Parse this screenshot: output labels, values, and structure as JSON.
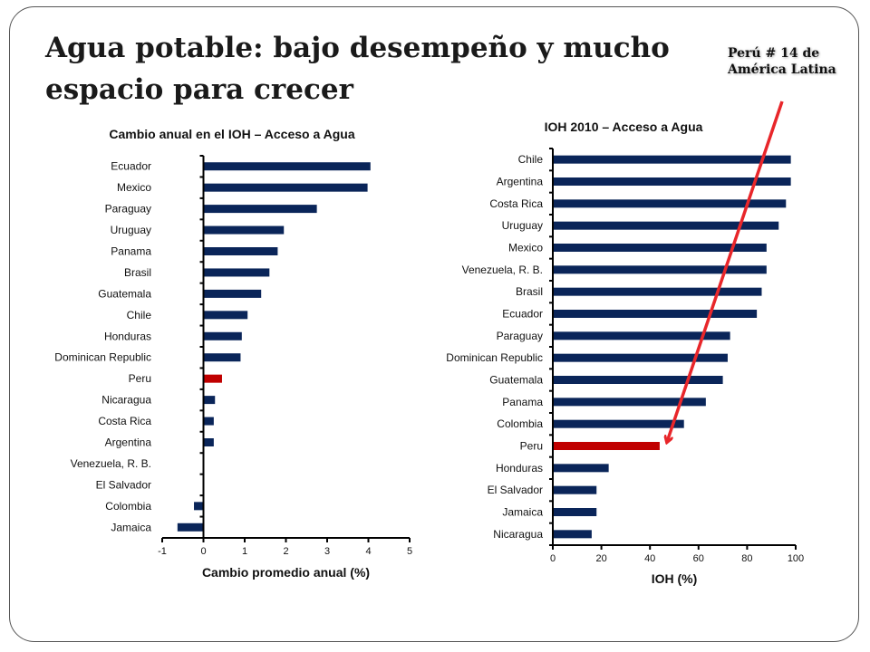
{
  "slide": {
    "title_line1": "Agua potable:  bajo desempeño y mucho",
    "title_line2": "espacio para crecer",
    "callout_line1": "Perú # 14  de",
    "callout_line2": "América Latina"
  },
  "colors": {
    "bar": "#0a2559",
    "highlight": "#c00000",
    "arrow": "#e8262a"
  },
  "chart_data": [
    {
      "type": "bar",
      "orientation": "horizontal",
      "title": "Cambio anual en el IOH – Acceso a Agua",
      "xlabel": "Cambio promedio anual (%)",
      "ylabel": "",
      "xlim": [
        -1,
        5
      ],
      "xticks": [
        "-1",
        "0",
        "1",
        "2",
        "3",
        "4",
        "5"
      ],
      "grid": false,
      "categories": [
        "Ecuador",
        "Mexico",
        "Paraguay",
        "Uruguay",
        "Panama",
        "Brasil",
        "Guatemala",
        "Chile",
        "Honduras",
        "Dominican Republic",
        "Peru",
        "Nicaragua",
        "Costa Rica",
        "Argentina",
        "Venezuela, R. B.",
        "El Salvador",
        "Colombia",
        "Jamaica"
      ],
      "values": [
        4.05,
        3.98,
        2.75,
        1.95,
        1.8,
        1.6,
        1.4,
        1.07,
        0.93,
        0.9,
        0.45,
        0.28,
        0.25,
        0.25,
        0.0,
        0.0,
        -0.23,
        -0.63
      ],
      "highlight": "Peru"
    },
    {
      "type": "bar",
      "orientation": "horizontal",
      "title": "IOH 2010 – Acceso a Agua",
      "xlabel": "IOH (%)",
      "ylabel": "",
      "xlim": [
        0,
        100
      ],
      "xticks": [
        "0",
        "20",
        "40",
        "60",
        "80",
        "100"
      ],
      "grid": false,
      "categories": [
        "Chile",
        "Argentina",
        "Costa Rica",
        "Uruguay",
        "Mexico",
        "Venezuela, R. B.",
        "Brasil",
        "Ecuador",
        "Paraguay",
        "Dominican Republic",
        "Guatemala",
        "Panama",
        "Colombia",
        "Peru",
        "Honduras",
        "El Salvador",
        "Jamaica",
        "Nicaragua"
      ],
      "values": [
        98,
        98,
        96,
        93,
        88,
        88,
        86,
        84,
        73,
        72,
        70,
        63,
        54,
        44,
        23,
        18,
        18,
        16
      ],
      "highlight": "Peru"
    }
  ]
}
